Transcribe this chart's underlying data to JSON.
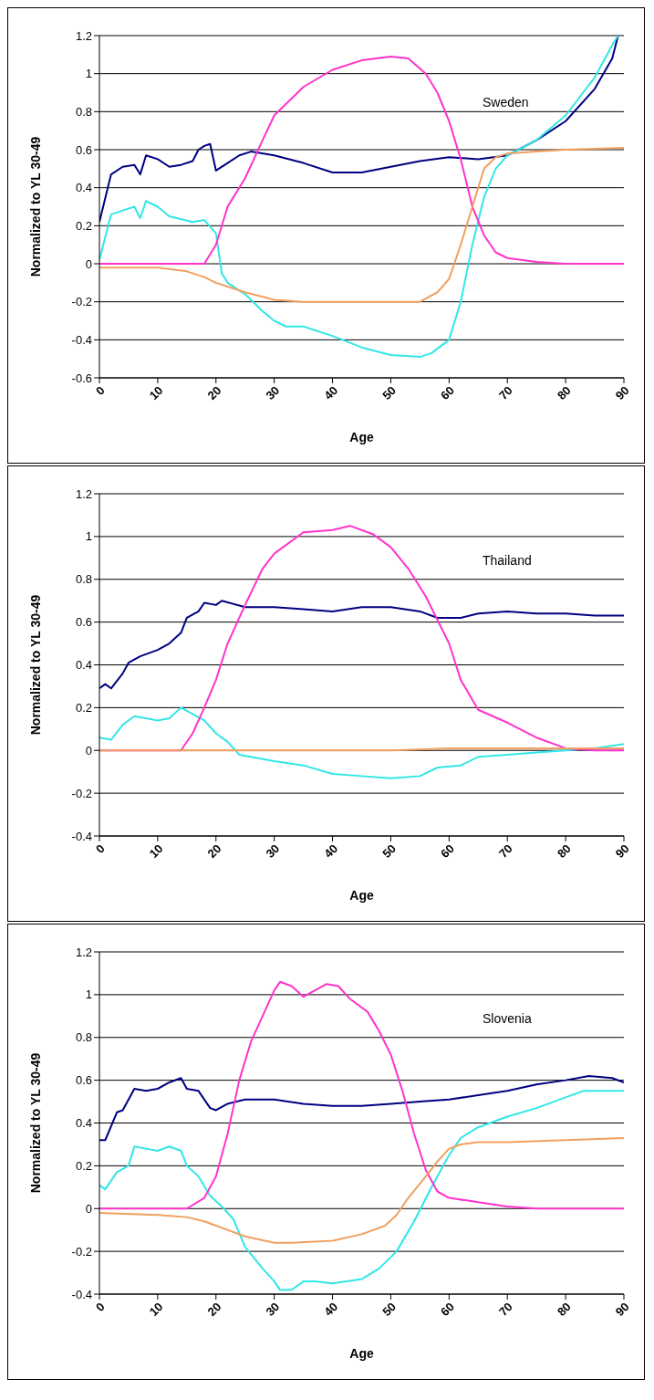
{
  "chart_data": [
    {
      "type": "line",
      "xlabel": "Age",
      "ylabel": "Normalized to YL 30-49",
      "annotations": [
        "Sweden"
      ],
      "xlim": [
        0,
        90
      ],
      "xticks": [
        0,
        10,
        20,
        30,
        40,
        50,
        60,
        70,
        80,
        90
      ],
      "ylim": [
        -0.6,
        1.2
      ],
      "yticks": [
        -0.6,
        -0.4,
        -0.2,
        0,
        0.2,
        0.4,
        0.6,
        0.8,
        1,
        1.2
      ],
      "grid": "y",
      "marker": "none",
      "line_style": "solid",
      "series": [
        {
          "color": "#000080",
          "x": [
            0,
            2,
            4,
            6,
            7,
            8,
            10,
            12,
            14,
            16,
            17,
            18,
            19,
            20,
            22,
            24,
            26,
            30,
            35,
            40,
            43,
            45,
            50,
            55,
            60,
            65,
            70,
            75,
            80,
            85,
            88,
            89
          ],
          "values": [
            0.22,
            0.47,
            0.51,
            0.52,
            0.47,
            0.57,
            0.55,
            0.51,
            0.52,
            0.54,
            0.6,
            0.62,
            0.63,
            0.49,
            0.53,
            0.57,
            0.59,
            0.57,
            0.53,
            0.48,
            0.48,
            0.48,
            0.51,
            0.54,
            0.56,
            0.55,
            0.57,
            0.65,
            0.75,
            0.92,
            1.08,
            1.2
          ]
        },
        {
          "color": "#33e6e6",
          "x": [
            0,
            2,
            4,
            6,
            7,
            8,
            10,
            12,
            16,
            18,
            20,
            21,
            22,
            25,
            28,
            30,
            32,
            35,
            40,
            45,
            50,
            55,
            57,
            60,
            62,
            64,
            66,
            68,
            70,
            75,
            80,
            85,
            88,
            89
          ],
          "values": [
            0.02,
            0.26,
            0.28,
            0.3,
            0.24,
            0.33,
            0.3,
            0.25,
            0.22,
            0.23,
            0.16,
            -0.05,
            -0.1,
            -0.16,
            -0.25,
            -0.3,
            -0.33,
            -0.33,
            -0.38,
            -0.44,
            -0.48,
            -0.49,
            -0.47,
            -0.4,
            -0.2,
            0.1,
            0.35,
            0.5,
            0.57,
            0.65,
            0.78,
            0.98,
            1.15,
            1.2
          ]
        },
        {
          "color": "#ff33cc",
          "x": [
            0,
            18,
            20,
            22,
            25,
            28,
            30,
            35,
            40,
            45,
            50,
            53,
            56,
            58,
            60,
            62,
            64,
            66,
            68,
            70,
            75,
            80,
            90
          ],
          "values": [
            0,
            0,
            0.1,
            0.3,
            0.45,
            0.65,
            0.78,
            0.93,
            1.02,
            1.07,
            1.09,
            1.08,
            1,
            0.9,
            0.75,
            0.55,
            0.3,
            0.15,
            0.06,
            0.03,
            0.01,
            0,
            0
          ]
        },
        {
          "color": "#f0a060",
          "x": [
            0,
            10,
            15,
            18,
            20,
            25,
            30,
            35,
            40,
            50,
            55,
            58,
            60,
            62,
            64,
            66,
            68,
            70,
            75,
            80,
            90
          ],
          "values": [
            -0.02,
            -0.02,
            -0.04,
            -0.07,
            -0.1,
            -0.15,
            -0.19,
            -0.2,
            -0.2,
            -0.2,
            -0.2,
            -0.15,
            -0.08,
            0.1,
            0.3,
            0.5,
            0.56,
            0.58,
            0.59,
            0.6,
            0.61
          ]
        }
      ]
    },
    {
      "type": "line",
      "xlabel": "Age",
      "ylabel": "Normalized to YL 30-49",
      "annotations": [
        "Thailand"
      ],
      "xlim": [
        0,
        90
      ],
      "xticks": [
        0,
        10,
        20,
        30,
        40,
        50,
        60,
        70,
        80,
        90
      ],
      "ylim": [
        -0.4,
        1.2
      ],
      "yticks": [
        -0.4,
        -0.2,
        0,
        0.2,
        0.4,
        0.6,
        0.8,
        1,
        1.2
      ],
      "grid": "y",
      "marker": "none",
      "line_style": "solid",
      "series": [
        {
          "color": "#000080",
          "x": [
            0,
            1,
            2,
            4,
            5,
            7,
            10,
            12,
            14,
            15,
            17,
            18,
            20,
            21,
            25,
            30,
            35,
            40,
            45,
            50,
            55,
            58,
            62,
            65,
            70,
            75,
            80,
            85,
            90
          ],
          "values": [
            0.29,
            0.31,
            0.29,
            0.36,
            0.41,
            0.44,
            0.47,
            0.5,
            0.55,
            0.62,
            0.65,
            0.69,
            0.68,
            0.7,
            0.67,
            0.67,
            0.66,
            0.65,
            0.67,
            0.67,
            0.65,
            0.62,
            0.62,
            0.64,
            0.65,
            0.64,
            0.64,
            0.63,
            0.63
          ]
        },
        {
          "color": "#33e6e6",
          "x": [
            0,
            2,
            4,
            6,
            8,
            10,
            12,
            14,
            16,
            18,
            20,
            22,
            24,
            30,
            35,
            40,
            45,
            50,
            55,
            58,
            62,
            65,
            70,
            75,
            80,
            85,
            90
          ],
          "values": [
            0.06,
            0.05,
            0.12,
            0.16,
            0.15,
            0.14,
            0.15,
            0.2,
            0.17,
            0.14,
            0.08,
            0.04,
            -0.02,
            -0.05,
            -0.07,
            -0.11,
            -0.12,
            -0.13,
            -0.12,
            -0.08,
            -0.07,
            -0.03,
            -0.02,
            -0.01,
            0,
            0.01,
            0.03
          ]
        },
        {
          "color": "#ff33cc",
          "x": [
            0,
            14,
            16,
            18,
            20,
            22,
            25,
            28,
            30,
            35,
            40,
            43,
            47,
            50,
            53,
            56,
            60,
            62,
            65,
            70,
            75,
            80,
            85,
            90
          ],
          "values": [
            0,
            0,
            0.08,
            0.2,
            0.33,
            0.5,
            0.68,
            0.85,
            0.92,
            1.02,
            1.03,
            1.05,
            1.01,
            0.95,
            0.85,
            0.72,
            0.5,
            0.33,
            0.19,
            0.13,
            0.06,
            0.01,
            0,
            0
          ]
        },
        {
          "color": "#f0a060",
          "x": [
            0,
            50,
            60,
            90
          ],
          "values": [
            0,
            0,
            0.01,
            0.01
          ]
        }
      ]
    },
    {
      "type": "line",
      "xlabel": "Age",
      "ylabel": "Normalized to YL 30-49",
      "annotations": [
        "Slovenia"
      ],
      "xlim": [
        0,
        90
      ],
      "xticks": [
        0,
        10,
        20,
        30,
        40,
        50,
        60,
        70,
        80,
        90
      ],
      "ylim": [
        -0.4,
        1.2
      ],
      "yticks": [
        -0.4,
        -0.2,
        0,
        0.2,
        0.4,
        0.6,
        0.8,
        1,
        1.2
      ],
      "grid": "y",
      "marker": "none",
      "line_style": "solid",
      "series": [
        {
          "color": "#000080",
          "x": [
            0,
            1,
            3,
            4,
            6,
            8,
            10,
            12,
            14,
            15,
            17,
            19,
            20,
            22,
            25,
            30,
            35,
            40,
            45,
            50,
            55,
            60,
            65,
            70,
            75,
            80,
            84,
            88,
            90
          ],
          "values": [
            0.32,
            0.32,
            0.45,
            0.46,
            0.56,
            0.55,
            0.56,
            0.59,
            0.61,
            0.56,
            0.55,
            0.47,
            0.46,
            0.49,
            0.51,
            0.51,
            0.49,
            0.48,
            0.48,
            0.49,
            0.5,
            0.51,
            0.53,
            0.55,
            0.58,
            0.6,
            0.62,
            0.61,
            0.59
          ]
        },
        {
          "color": "#33e6e6",
          "x": [
            0,
            1,
            3,
            5,
            6,
            8,
            10,
            12,
            14,
            15,
            17,
            19,
            21,
            23,
            25,
            28,
            30,
            31,
            33,
            35,
            37,
            40,
            45,
            48,
            51,
            54,
            57,
            60,
            62,
            65,
            70,
            75,
            80,
            83,
            90
          ],
          "values": [
            0.11,
            0.09,
            0.17,
            0.2,
            0.29,
            0.28,
            0.27,
            0.29,
            0.27,
            0.2,
            0.15,
            0.06,
            0.01,
            -0.05,
            -0.18,
            -0.28,
            -0.34,
            -0.38,
            -0.38,
            -0.34,
            -0.34,
            -0.35,
            -0.33,
            -0.28,
            -0.2,
            -0.06,
            0.1,
            0.25,
            0.33,
            0.38,
            0.43,
            0.47,
            0.52,
            0.55,
            0.55
          ]
        },
        {
          "color": "#ff33cc",
          "x": [
            0,
            15,
            18,
            20,
            22,
            24,
            26,
            28,
            30,
            31,
            33,
            35,
            37,
            39,
            41,
            43,
            46,
            48,
            50,
            52,
            54,
            56,
            58,
            60,
            65,
            70,
            75,
            90
          ],
          "values": [
            0,
            0,
            0.05,
            0.15,
            0.35,
            0.6,
            0.78,
            0.9,
            1.02,
            1.06,
            1.04,
            0.99,
            1.02,
            1.05,
            1.04,
            0.98,
            0.92,
            0.83,
            0.72,
            0.55,
            0.35,
            0.18,
            0.08,
            0.05,
            0.03,
            0.01,
            0,
            0
          ]
        },
        {
          "color": "#f0a060",
          "x": [
            0,
            10,
            15,
            18,
            20,
            25,
            30,
            33,
            40,
            45,
            49,
            51,
            53,
            56,
            58,
            60,
            62,
            65,
            70,
            80,
            90
          ],
          "values": [
            -0.02,
            -0.03,
            -0.04,
            -0.06,
            -0.08,
            -0.13,
            -0.16,
            -0.16,
            -0.15,
            -0.12,
            -0.08,
            -0.03,
            0.05,
            0.15,
            0.22,
            0.28,
            0.3,
            0.31,
            0.31,
            0.32,
            0.33
          ]
        }
      ]
    }
  ]
}
